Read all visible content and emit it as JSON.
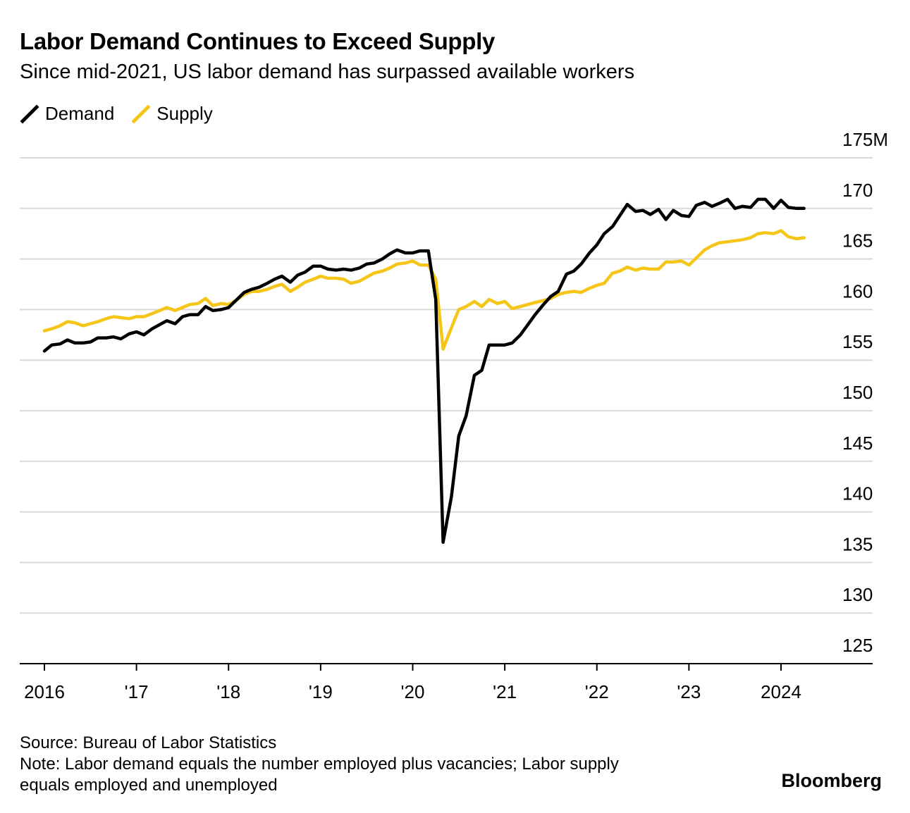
{
  "title": "Labor Demand Continues to Exceed Supply",
  "subtitle": "Since mid-2021, US labor demand has surpassed available workers",
  "legend": [
    {
      "label": "Demand",
      "color": "#000000"
    },
    {
      "label": "Supply",
      "color": "#f5c518"
    }
  ],
  "footer": {
    "source": "Source: Bureau of Labor Statistics",
    "note_line1": "Note: Labor demand equals the number employed plus vacancies; Labor supply",
    "note_line2": "equals employed and unemployed"
  },
  "brand": "Bloomberg",
  "chart_data": {
    "type": "line",
    "title": "Labor Demand Continues to Exceed Supply",
    "xlabel": "",
    "ylabel": "",
    "ylim": [
      125,
      175
    ],
    "y_ticks": [
      125,
      130,
      135,
      140,
      145,
      150,
      155,
      160,
      165,
      170,
      175
    ],
    "y_tick_labels": [
      "125",
      "130",
      "135",
      "140",
      "145",
      "150",
      "155",
      "160",
      "165",
      "170",
      "175M"
    ],
    "x_ticks": [
      2016,
      2017,
      2018,
      2019,
      2020,
      2021,
      2022,
      2023,
      2024
    ],
    "x_tick_labels": [
      "2016",
      "'17",
      "'18",
      "'19",
      "'20",
      "'21",
      "'22",
      "'23",
      "2024"
    ],
    "grid": true,
    "series": [
      {
        "name": "Demand",
        "color": "#000000",
        "points": [
          [
            2016.0,
            155.9
          ],
          [
            2016.08,
            156.5
          ],
          [
            2016.17,
            156.6
          ],
          [
            2016.25,
            157.0
          ],
          [
            2016.33,
            156.7
          ],
          [
            2016.42,
            156.7
          ],
          [
            2016.5,
            156.8
          ],
          [
            2016.58,
            157.2
          ],
          [
            2016.67,
            157.2
          ],
          [
            2016.75,
            157.3
          ],
          [
            2016.83,
            157.1
          ],
          [
            2016.92,
            157.6
          ],
          [
            2017.0,
            157.8
          ],
          [
            2017.08,
            157.5
          ],
          [
            2017.17,
            158.1
          ],
          [
            2017.25,
            158.5
          ],
          [
            2017.33,
            158.9
          ],
          [
            2017.42,
            158.6
          ],
          [
            2017.5,
            159.3
          ],
          [
            2017.58,
            159.5
          ],
          [
            2017.67,
            159.5
          ],
          [
            2017.75,
            160.3
          ],
          [
            2017.83,
            159.9
          ],
          [
            2017.92,
            160.0
          ],
          [
            2018.0,
            160.2
          ],
          [
            2018.08,
            160.9
          ],
          [
            2018.17,
            161.7
          ],
          [
            2018.25,
            162.0
          ],
          [
            2018.33,
            162.2
          ],
          [
            2018.42,
            162.6
          ],
          [
            2018.5,
            163.0
          ],
          [
            2018.58,
            163.3
          ],
          [
            2018.67,
            162.7
          ],
          [
            2018.75,
            163.4
          ],
          [
            2018.83,
            163.7
          ],
          [
            2018.92,
            164.3
          ],
          [
            2019.0,
            164.3
          ],
          [
            2019.08,
            164.0
          ],
          [
            2019.17,
            163.9
          ],
          [
            2019.25,
            164.0
          ],
          [
            2019.33,
            163.9
          ],
          [
            2019.42,
            164.1
          ],
          [
            2019.5,
            164.5
          ],
          [
            2019.58,
            164.6
          ],
          [
            2019.67,
            165.0
          ],
          [
            2019.75,
            165.5
          ],
          [
            2019.83,
            165.9
          ],
          [
            2019.92,
            165.6
          ],
          [
            2020.0,
            165.6
          ],
          [
            2020.08,
            165.8
          ],
          [
            2020.17,
            165.8
          ],
          [
            2020.25,
            161.0
          ],
          [
            2020.33,
            137.0
          ],
          [
            2020.42,
            141.5
          ],
          [
            2020.5,
            147.5
          ],
          [
            2020.58,
            149.5
          ],
          [
            2020.67,
            153.5
          ],
          [
            2020.75,
            154.0
          ],
          [
            2020.83,
            156.5
          ],
          [
            2020.92,
            156.5
          ],
          [
            2021.0,
            156.5
          ],
          [
            2021.08,
            156.7
          ],
          [
            2021.17,
            157.5
          ],
          [
            2021.25,
            158.5
          ],
          [
            2021.33,
            159.5
          ],
          [
            2021.42,
            160.5
          ],
          [
            2021.5,
            161.3
          ],
          [
            2021.58,
            161.8
          ],
          [
            2021.67,
            163.5
          ],
          [
            2021.75,
            163.8
          ],
          [
            2021.83,
            164.5
          ],
          [
            2021.92,
            165.6
          ],
          [
            2022.0,
            166.4
          ],
          [
            2022.08,
            167.5
          ],
          [
            2022.17,
            168.2
          ],
          [
            2022.25,
            169.3
          ],
          [
            2022.33,
            170.4
          ],
          [
            2022.42,
            169.7
          ],
          [
            2022.5,
            169.8
          ],
          [
            2022.58,
            169.4
          ],
          [
            2022.67,
            169.9
          ],
          [
            2022.75,
            168.9
          ],
          [
            2022.83,
            169.8
          ],
          [
            2022.92,
            169.3
          ],
          [
            2023.0,
            169.2
          ],
          [
            2023.08,
            170.3
          ],
          [
            2023.17,
            170.6
          ],
          [
            2023.25,
            170.2
          ],
          [
            2023.33,
            170.5
          ],
          [
            2023.42,
            170.9
          ],
          [
            2023.5,
            170.0
          ],
          [
            2023.58,
            170.2
          ],
          [
            2023.67,
            170.1
          ],
          [
            2023.75,
            170.9
          ],
          [
            2023.83,
            170.9
          ],
          [
            2023.92,
            170.0
          ],
          [
            2024.0,
            170.8
          ],
          [
            2024.08,
            170.1
          ],
          [
            2024.17,
            170.0
          ],
          [
            2024.25,
            170.0
          ]
        ]
      },
      {
        "name": "Supply",
        "color": "#f5c518",
        "points": [
          [
            2016.0,
            157.9
          ],
          [
            2016.08,
            158.1
          ],
          [
            2016.17,
            158.4
          ],
          [
            2016.25,
            158.8
          ],
          [
            2016.33,
            158.7
          ],
          [
            2016.42,
            158.4
          ],
          [
            2016.5,
            158.6
          ],
          [
            2016.58,
            158.8
          ],
          [
            2016.67,
            159.1
          ],
          [
            2016.75,
            159.3
          ],
          [
            2016.83,
            159.2
          ],
          [
            2016.92,
            159.1
          ],
          [
            2017.0,
            159.3
          ],
          [
            2017.08,
            159.3
          ],
          [
            2017.17,
            159.6
          ],
          [
            2017.25,
            159.9
          ],
          [
            2017.33,
            160.2
          ],
          [
            2017.42,
            159.9
          ],
          [
            2017.5,
            160.2
          ],
          [
            2017.58,
            160.5
          ],
          [
            2017.67,
            160.6
          ],
          [
            2017.75,
            161.1
          ],
          [
            2017.83,
            160.4
          ],
          [
            2017.92,
            160.6
          ],
          [
            2018.0,
            160.5
          ],
          [
            2018.08,
            160.9
          ],
          [
            2018.17,
            161.5
          ],
          [
            2018.25,
            161.8
          ],
          [
            2018.33,
            161.8
          ],
          [
            2018.42,
            162.0
          ],
          [
            2018.5,
            162.3
          ],
          [
            2018.58,
            162.5
          ],
          [
            2018.67,
            161.8
          ],
          [
            2018.75,
            162.2
          ],
          [
            2018.83,
            162.7
          ],
          [
            2018.92,
            163.0
          ],
          [
            2019.0,
            163.3
          ],
          [
            2019.08,
            163.1
          ],
          [
            2019.17,
            163.1
          ],
          [
            2019.25,
            163.0
          ],
          [
            2019.33,
            162.6
          ],
          [
            2019.42,
            162.8
          ],
          [
            2019.5,
            163.2
          ],
          [
            2019.58,
            163.6
          ],
          [
            2019.67,
            163.8
          ],
          [
            2019.75,
            164.1
          ],
          [
            2019.83,
            164.5
          ],
          [
            2019.92,
            164.6
          ],
          [
            2020.0,
            164.8
          ],
          [
            2020.08,
            164.4
          ],
          [
            2020.17,
            164.4
          ],
          [
            2020.25,
            163.0
          ],
          [
            2020.33,
            156.1
          ],
          [
            2020.42,
            158.2
          ],
          [
            2020.5,
            160.0
          ],
          [
            2020.58,
            160.3
          ],
          [
            2020.67,
            160.8
          ],
          [
            2020.75,
            160.3
          ],
          [
            2020.83,
            161.0
          ],
          [
            2020.92,
            160.6
          ],
          [
            2021.0,
            160.8
          ],
          [
            2021.08,
            160.1
          ],
          [
            2021.17,
            160.3
          ],
          [
            2021.25,
            160.5
          ],
          [
            2021.33,
            160.7
          ],
          [
            2021.42,
            160.9
          ],
          [
            2021.5,
            161.1
          ],
          [
            2021.58,
            161.5
          ],
          [
            2021.67,
            161.7
          ],
          [
            2021.75,
            161.8
          ],
          [
            2021.83,
            161.7
          ],
          [
            2021.92,
            162.1
          ],
          [
            2022.0,
            162.4
          ],
          [
            2022.08,
            162.6
          ],
          [
            2022.17,
            163.6
          ],
          [
            2022.25,
            163.8
          ],
          [
            2022.33,
            164.2
          ],
          [
            2022.42,
            163.9
          ],
          [
            2022.5,
            164.1
          ],
          [
            2022.58,
            164.0
          ],
          [
            2022.67,
            164.0
          ],
          [
            2022.75,
            164.7
          ],
          [
            2022.83,
            164.7
          ],
          [
            2022.92,
            164.8
          ],
          [
            2023.0,
            164.4
          ],
          [
            2023.08,
            165.1
          ],
          [
            2023.17,
            165.9
          ],
          [
            2023.25,
            166.3
          ],
          [
            2023.33,
            166.6
          ],
          [
            2023.42,
            166.7
          ],
          [
            2023.5,
            166.8
          ],
          [
            2023.58,
            166.9
          ],
          [
            2023.67,
            167.1
          ],
          [
            2023.75,
            167.5
          ],
          [
            2023.83,
            167.6
          ],
          [
            2023.92,
            167.5
          ],
          [
            2024.0,
            167.8
          ],
          [
            2024.08,
            167.2
          ],
          [
            2024.17,
            167.0
          ],
          [
            2024.25,
            167.1
          ]
        ]
      }
    ]
  }
}
